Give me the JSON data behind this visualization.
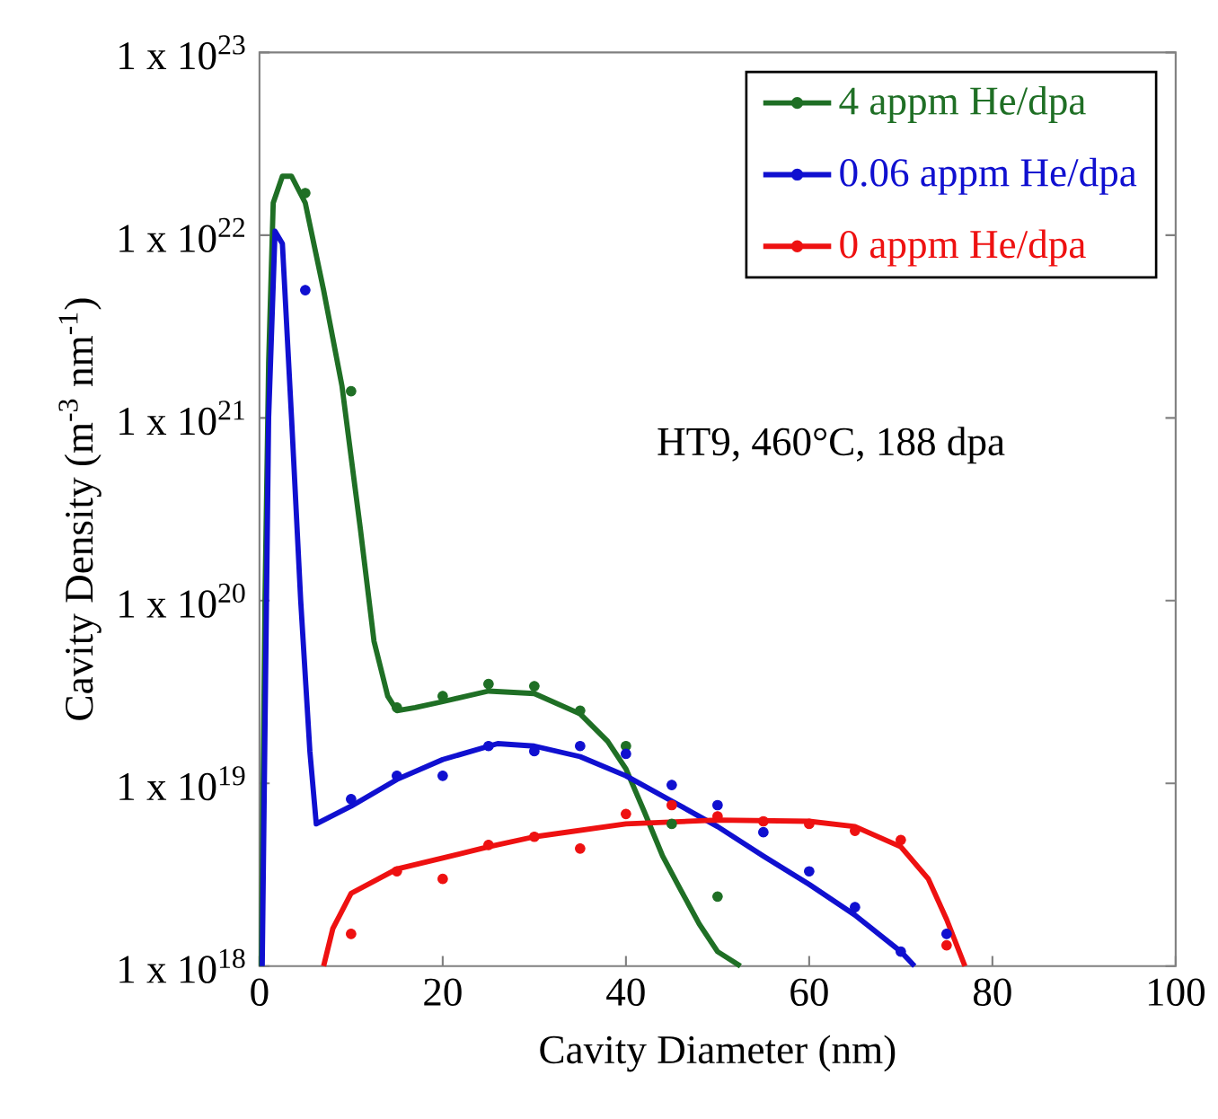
{
  "chart_data": {
    "type": "scatter",
    "xlabel": "Cavity Diameter (nm)",
    "ylabel": "Cavity Density (m$^{-3}$ nm$^{-1}$)",
    "annotations": [
      "HT9, 460°C, 188 dpa"
    ],
    "log": "y",
    "legend": "top right",
    "grid": false,
    "xlim": [
      0,
      100
    ],
    "xticks": [
      0,
      20,
      40,
      60,
      80,
      100
    ],
    "ylim": [
      1e+18,
      1e+23
    ],
    "yticks": [
      {
        "value": 1e+18,
        "label": "1 x 10$^{18}$"
      },
      {
        "value": 1e+19,
        "label": "1 x 10$^{19}$"
      },
      {
        "value": 1e+20,
        "label": "1 x 10$^{20}$"
      },
      {
        "value": 1e+21,
        "label": "1 x 10$^{21}$"
      },
      {
        "value": 1e+22,
        "label": "1 x 10$^{22}$"
      },
      {
        "value": 1e+23,
        "label": "1 x 10$^{23}$"
      }
    ],
    "series": [
      {
        "name": "4 appm He/dpa",
        "marker": "circle",
        "color": "#1f6f25",
        "x": [
          5,
          10,
          15,
          20,
          25,
          30,
          35,
          40,
          45,
          50
        ],
        "values": [
          1.7e+22,
          1.4e+21,
          2.6e+19,
          3e+19,
          3.5e+19,
          3.4e+19,
          2.5e+19,
          1.6e+19,
          6e+18,
          2.4e+18
        ]
      },
      {
        "name": "0.06 appm He/dpa",
        "marker": "circle",
        "color": "#1010d0",
        "x": [
          5,
          10,
          15,
          20,
          25,
          30,
          35,
          40,
          45,
          50,
          55,
          60,
          65,
          70,
          75
        ],
        "values": [
          5e+21,
          8.2e+18,
          1.1e+19,
          1.1e+19,
          1.6e+19,
          1.5e+19,
          1.6e+19,
          1.45e+19,
          9.8e+18,
          7.6e+18,
          5.4e+18,
          3.3e+18,
          2.1e+18,
          1.2e+18,
          1.5e+18
        ]
      },
      {
        "name": "0 appm He/dpa",
        "marker": "circle",
        "color": "#ee1111",
        "x": [
          10,
          15,
          20,
          25,
          30,
          35,
          40,
          45,
          50,
          55,
          60,
          65,
          70,
          75
        ],
        "values": [
          1.5e+18,
          3.3e+18,
          3e+18,
          4.6e+18,
          5.1e+18,
          4.4e+18,
          6.8e+18,
          7.6e+18,
          6.6e+18,
          6.2e+18,
          6e+18,
          5.5e+18,
          4.9e+18,
          1.3e+18
        ]
      },
      {
        "type": "line",
        "marker": "none",
        "line_style": "solid",
        "color": "#1f6f25",
        "x": [
          0.2,
          0.6,
          1,
          1.5,
          2.5,
          3.5,
          5,
          7,
          9,
          11,
          12.5,
          14,
          15,
          17,
          20,
          25,
          30,
          35,
          38,
          40,
          42,
          44,
          46,
          48,
          50,
          52.5
        ],
        "values": [
          1e+18,
          1e+20,
          2e+21,
          1.5e+22,
          2.1e+22,
          2.1e+22,
          1.5e+22,
          5e+21,
          1.5e+21,
          2.5e+20,
          6e+19,
          3e+19,
          2.5e+19,
          2.6e+19,
          2.8e+19,
          3.2e+19,
          3.1e+19,
          2.4e+19,
          1.7e+19,
          1.2e+19,
          7e+18,
          4e+18,
          2.6e+18,
          1.7e+18,
          1.2e+18,
          1e+18
        ]
      },
      {
        "type": "line",
        "marker": "none",
        "line_style": "solid",
        "color": "#1010d0",
        "x": [
          0.3,
          1,
          1.7,
          2.5,
          3.5,
          4.5,
          5.5,
          6.2,
          10,
          15,
          20,
          26,
          30,
          35,
          40,
          45,
          50,
          55,
          60,
          65,
          70,
          71.5
        ],
        "values": [
          1e+18,
          1e+21,
          1.05e+22,
          9e+21,
          1e+21,
          1e+20,
          1.5e+19,
          6e+18,
          7.5e+18,
          1.05e+19,
          1.35e+19,
          1.65e+19,
          1.6e+19,
          1.4e+19,
          1.1e+19,
          8e+18,
          5.8e+18,
          4e+18,
          2.8e+18,
          1.9e+18,
          1.2e+18,
          1e+18
        ]
      },
      {
        "type": "line",
        "marker": "none",
        "line_style": "solid",
        "color": "#ee1111",
        "x": [
          7,
          8,
          10,
          15,
          20,
          25,
          30,
          40,
          50,
          60,
          65,
          70,
          73,
          75,
          77
        ],
        "values": [
          1e+18,
          1.6e+18,
          2.5e+18,
          3.4e+18,
          3.9e+18,
          4.5e+18,
          5.1e+18,
          6e+18,
          6.3e+18,
          6.2e+18,
          5.8e+18,
          4.5e+18,
          3e+18,
          1.8e+18,
          1e+18
        ]
      }
    ]
  }
}
